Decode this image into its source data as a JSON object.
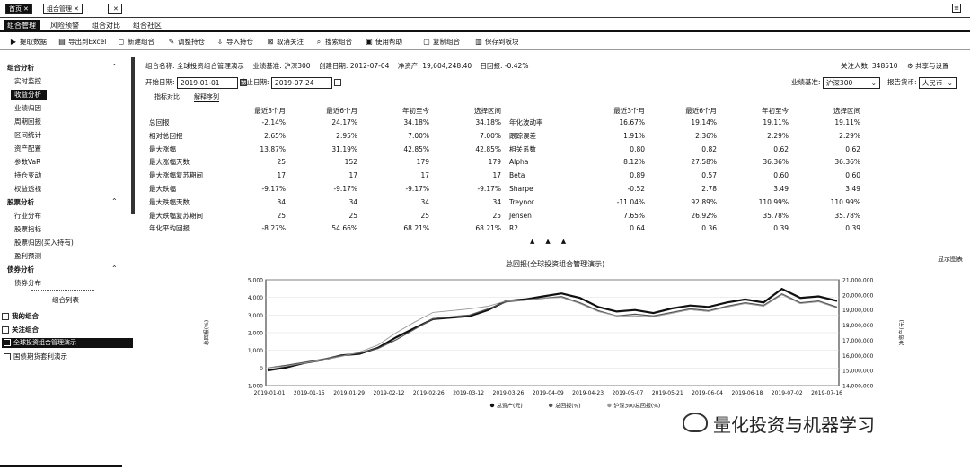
{
  "app": {
    "tabs": [
      {
        "label": "首页"
      },
      {
        "label": "组合管理"
      }
    ],
    "extra_tab": "组合管理"
  },
  "subtabs": [
    {
      "label": "组合管理"
    },
    {
      "label": "风险预警"
    },
    {
      "label": "组合对比"
    },
    {
      "label": "组合社区"
    }
  ],
  "toolbar": [
    {
      "icon": "play-icon",
      "label": "提取数据"
    },
    {
      "icon": "excel-icon",
      "label": "导出到Excel"
    },
    {
      "icon": "new-icon",
      "label": "新建组合"
    },
    {
      "icon": "edit-icon",
      "label": "调整持仓"
    },
    {
      "icon": "import-icon",
      "label": "导入持仓"
    },
    {
      "icon": "unfollow-icon",
      "label": "取消关注"
    },
    {
      "icon": "search-icon",
      "label": "搜索组合"
    },
    {
      "icon": "help-icon",
      "label": "使用帮助"
    },
    {
      "icon": "copy-icon",
      "label": "复制组合"
    },
    {
      "icon": "save-icon",
      "label": "保存到板块"
    }
  ],
  "sidebar": {
    "groups": [
      {
        "title": "组合分析",
        "items": [
          "实时监控",
          "收益分析",
          "业绩归因",
          "周期回报",
          "区间统计",
          "资产配置",
          "参数VaR",
          "持仓变动",
          "权益透视"
        ]
      },
      {
        "title": "股票分析",
        "items": [
          "行业分布",
          "股票指标",
          "股票归因(买入持有)",
          "盈利预测"
        ]
      },
      {
        "title": "债券分析",
        "items": [
          "债券分布"
        ]
      }
    ],
    "selected": "收益分析",
    "divider_label": "组合列表",
    "my_portfolios": "我的组合",
    "followed": "关注组合",
    "followed_items": [
      "全球投资组合管理演示",
      "国债期货套利演示"
    ]
  },
  "info": {
    "name": "组合名称: 全球投资组合管理演示",
    "benchmark": "业绩基准: 沪深300",
    "created": "创建日期: 2012-07-04",
    "nav": "净资产: 19,604,248.40",
    "daily": "日回报: -0.42%",
    "followers": "关注人数: 348510",
    "share": "共享与设置"
  },
  "dates": {
    "start_label": "开始日期:",
    "start": "2019-01-01",
    "end_label": "截止日期:",
    "end": "2019-07-24",
    "benchmark_label": "业绩基准:",
    "benchmark": "沪深300",
    "currency_label": "报告货币:",
    "currency": "人民币"
  },
  "inner_tabs": [
    "指标对比",
    "解释序列"
  ],
  "stats": {
    "columns": [
      "最近3个月",
      "最近6个月",
      "年初至今",
      "选择区间"
    ],
    "left": [
      {
        "label": "总回报",
        "values": [
          "-2.14%",
          "24.17%",
          "34.18%",
          "34.18%"
        ]
      },
      {
        "label": "相对总回报",
        "values": [
          "2.65%",
          "2.95%",
          "7.00%",
          "7.00%"
        ]
      },
      {
        "label": "最大涨幅",
        "values": [
          "13.87%",
          "31.19%",
          "42.85%",
          "42.85%"
        ]
      },
      {
        "label": "最大涨幅天数",
        "values": [
          "25",
          "152",
          "179",
          "179"
        ]
      },
      {
        "label": "最大涨幅复苏期间",
        "values": [
          "17",
          "17",
          "17",
          "17"
        ]
      },
      {
        "label": "最大跌幅",
        "values": [
          "-9.17%",
          "-9.17%",
          "-9.17%",
          "-9.17%"
        ]
      },
      {
        "label": "最大跌幅天数",
        "values": [
          "34",
          "34",
          "34",
          "34"
        ]
      },
      {
        "label": "最大跌幅复苏期间",
        "values": [
          "25",
          "25",
          "25",
          "25"
        ]
      },
      {
        "label": "年化平均回报",
        "values": [
          "-8.27%",
          "54.66%",
          "68.21%",
          "68.21%"
        ]
      }
    ],
    "right": [
      {
        "label": "年化波动率",
        "values": [
          "16.67%",
          "19.14%",
          "19.11%",
          "19.11%"
        ]
      },
      {
        "label": "跟踪误差",
        "values": [
          "1.91%",
          "2.36%",
          "2.29%",
          "2.29%"
        ]
      },
      {
        "label": "相关系数",
        "values": [
          "0.80",
          "0.82",
          "0.62",
          "0.62"
        ]
      },
      {
        "label": "Alpha",
        "values": [
          "8.12%",
          "27.58%",
          "36.36%",
          "36.36%"
        ]
      },
      {
        "label": "Beta",
        "values": [
          "0.89",
          "0.57",
          "0.60",
          "0.60"
        ]
      },
      {
        "label": "Sharpe",
        "values": [
          "-0.52",
          "2.78",
          "3.49",
          "3.49"
        ]
      },
      {
        "label": "Treynor",
        "values": [
          "-11.04%",
          "92.89%",
          "110.99%",
          "110.99%"
        ]
      },
      {
        "label": "Jensen",
        "values": [
          "7.65%",
          "26.92%",
          "35.78%",
          "35.78%"
        ]
      },
      {
        "label": "R2",
        "values": [
          "0.64",
          "0.36",
          "0.39",
          "0.39"
        ]
      }
    ]
  },
  "chart_corner": "显示图表",
  "watermark": "量化投资与机器学习",
  "chart_data": {
    "type": "line",
    "title": "总回报(全球投资组合管理演示)",
    "ylabel_left": "总回报(%)",
    "ylabel_right": "净资产(元)",
    "y_left_ticks": [
      "-1,000",
      "0",
      "1,000",
      "2,000",
      "3,000",
      "4,000",
      "5,000"
    ],
    "y_right_ticks": [
      "14,000,000",
      "15,000,000",
      "16,000,000",
      "17,000,000",
      "18,000,000",
      "19,000,000",
      "20,000,000",
      "21,000,000"
    ],
    "x_ticks": [
      "2019-01-01",
      "2019-01-15",
      "2019-01-29",
      "2019-02-12",
      "2019-02-26",
      "2019-03-12",
      "2019-03-26",
      "2019-04-09",
      "2019-04-23",
      "2019-05-07",
      "2019-05-21",
      "2019-06-04",
      "2019-06-18",
      "2019-07-02",
      "2019-07-16"
    ],
    "ylim_left": [
      -1000,
      5000
    ],
    "ylim_right": [
      14000000,
      21000000
    ],
    "series": [
      {
        "name": "总资产(元)",
        "axis": "right",
        "color": "#111111",
        "values": [
          15000000,
          15200000,
          15500000,
          15700000,
          16000000,
          16100000,
          16500000,
          17200000,
          17800000,
          18400000,
          18500000,
          18600000,
          19000000,
          19600000,
          19700000,
          19900000,
          20100000,
          19800000,
          19200000,
          18900000,
          19000000,
          18800000,
          19100000,
          19300000,
          19200000,
          19500000,
          19700000,
          19500000,
          20400000,
          19800000,
          19900000,
          19600000
        ]
      },
      {
        "name": "总回报(%)",
        "axis": "left",
        "color": "#555555",
        "values": [
          0,
          150,
          320,
          500,
          700,
          850,
          1100,
          1600,
          2200,
          2800,
          2900,
          3000,
          3350,
          3750,
          3850,
          3950,
          4050,
          3700,
          3250,
          2950,
          3050,
          2950,
          3150,
          3350,
          3250,
          3500,
          3700,
          3550,
          4200,
          3700,
          3800,
          3450
        ]
      },
      {
        "name": "沪深300总回报(%)",
        "axis": "left",
        "color": "#999999",
        "values": [
          0,
          100,
          280,
          450,
          650,
          900,
          1300,
          2000,
          2600,
          3150,
          3250,
          3350,
          3500,
          3800,
          3850,
          3950,
          4000,
          3650,
          3200,
          2950,
          2950,
          2900,
          3100,
          3300,
          3200,
          3450,
          3650,
          3500,
          4150,
          3650,
          3750,
          3400
        ]
      }
    ],
    "legend": "bottom",
    "grid": true
  }
}
